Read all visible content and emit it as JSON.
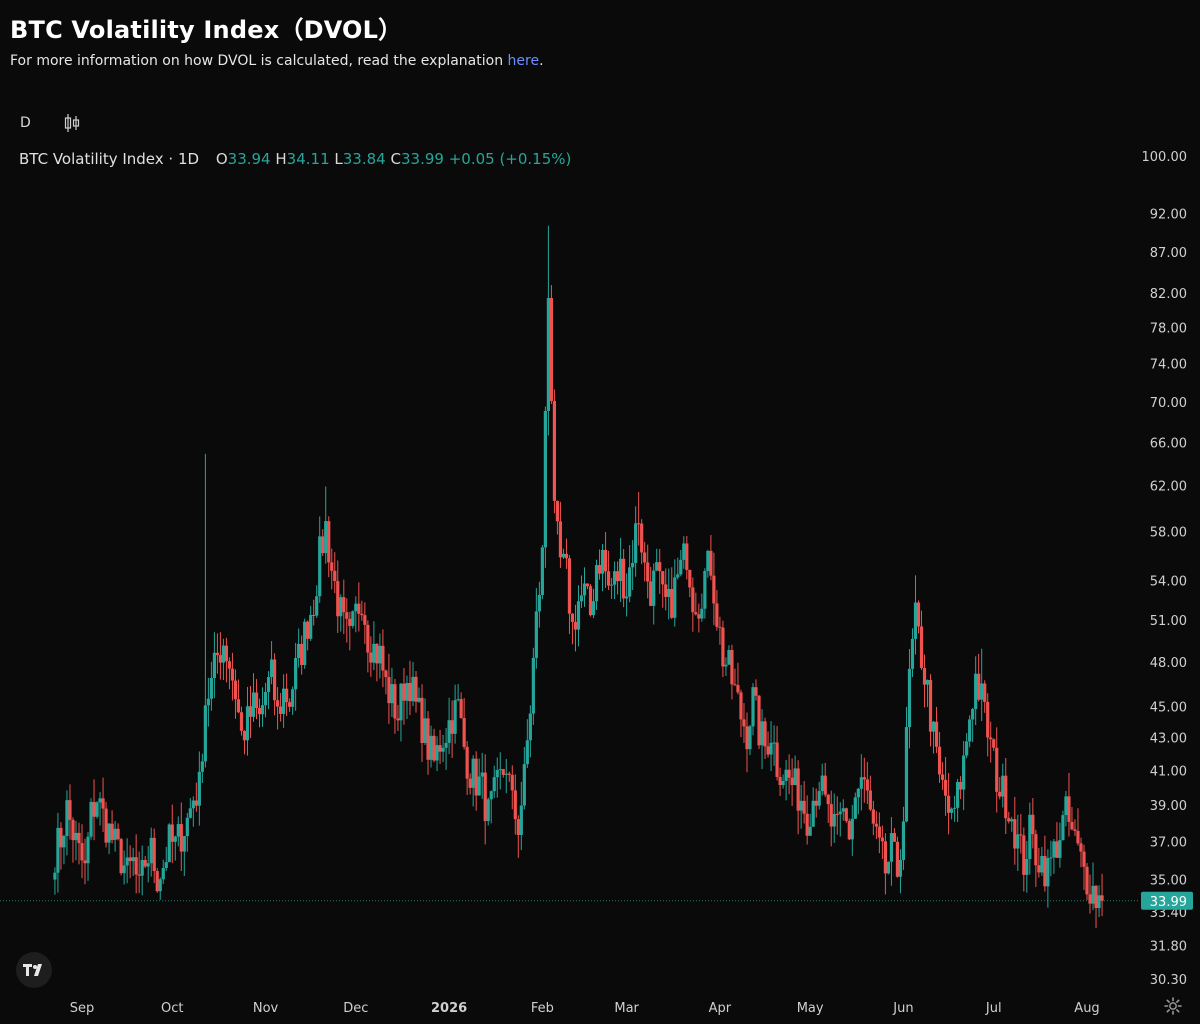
{
  "header": {
    "title": "BTC Volatility Index（DVOL）",
    "subtitle_text": "For more information on how DVOL is calculated, read the explanation ",
    "subtitle_link": "here",
    "subtitle_end": "."
  },
  "toolbar": {
    "interval": "D",
    "chart_type_icon": "candles-icon"
  },
  "legend": {
    "symbol": "BTC Volatility Index · 1D",
    "o_label": "O",
    "o_value": "33.94",
    "h_label": "H",
    "h_value": "34.11",
    "l_label": "L",
    "l_value": "33.84",
    "c_label": "C",
    "c_value": "33.99",
    "change": "+0.05 (+0.15%)"
  },
  "colors": {
    "up": "#26a69a",
    "down": "#ef5350",
    "last_price": "#26a69a",
    "background": "#0a0a0a"
  },
  "chart_data": {
    "type": "candlestick",
    "scale": "log",
    "y_ticks": [
      "100.00",
      "92.00",
      "87.00",
      "82.00",
      "78.00",
      "74.00",
      "70.00",
      "66.00",
      "62.00",
      "58.00",
      "54.00",
      "51.00",
      "48.00",
      "45.00",
      "43.00",
      "41.00",
      "39.00",
      "37.00",
      "35.00",
      "33.40",
      "31.80",
      "30.30"
    ],
    "x_ticks": [
      "Sep",
      "Oct",
      "Nov",
      "Dec",
      "2026",
      "Feb",
      "Mar",
      "Apr",
      "May",
      "Jun",
      "Jul",
      "Aug"
    ],
    "ylim": [
      29.5,
      101
    ],
    "last_price": "33.99",
    "close_series_approx": [
      [
        "2025-08-23",
        36.5
      ],
      [
        "2025-08-25",
        37.2
      ],
      [
        "2025-08-27",
        38.8
      ],
      [
        "2025-08-29",
        37.5
      ],
      [
        "2025-08-31",
        36.4
      ],
      [
        "2025-09-02",
        35.5
      ],
      [
        "2025-09-04",
        38.5
      ],
      [
        "2025-09-06",
        39.5
      ],
      [
        "2025-09-08",
        38.4
      ],
      [
        "2025-09-10",
        37.6
      ],
      [
        "2025-09-12",
        36.8
      ],
      [
        "2025-09-14",
        36.2
      ],
      [
        "2025-09-16",
        35.3
      ],
      [
        "2025-09-18",
        35.9
      ],
      [
        "2025-09-20",
        34.4
      ],
      [
        "2025-09-22",
        36.0
      ],
      [
        "2025-09-24",
        36.5
      ],
      [
        "2025-09-26",
        35.2
      ],
      [
        "2025-09-28",
        35.8
      ],
      [
        "2025-09-30",
        37.0
      ],
      [
        "2025-10-02",
        36.8
      ],
      [
        "2025-10-04",
        37.5
      ],
      [
        "2025-10-06",
        38.2
      ],
      [
        "2025-10-08",
        39.5
      ],
      [
        "2025-10-10",
        40.0
      ],
      [
        "2025-10-12",
        45.5
      ],
      [
        "2025-10-14",
        46.5
      ],
      [
        "2025-10-16",
        48.5
      ],
      [
        "2025-10-18",
        49.5
      ],
      [
        "2025-10-20",
        48.0
      ],
      [
        "2025-10-22",
        46.0
      ],
      [
        "2025-10-24",
        43.2
      ],
      [
        "2025-10-26",
        44.0
      ],
      [
        "2025-10-28",
        45.0
      ],
      [
        "2025-10-30",
        44.2
      ],
      [
        "2025-11-01",
        46.0
      ],
      [
        "2025-11-03",
        47.0
      ],
      [
        "2025-11-05",
        44.5
      ],
      [
        "2025-11-07",
        46.0
      ],
      [
        "2025-11-09",
        45.5
      ],
      [
        "2025-11-11",
        47.5
      ],
      [
        "2025-11-13",
        49.0
      ],
      [
        "2025-11-15",
        51.0
      ],
      [
        "2025-11-17",
        52.5
      ],
      [
        "2025-11-19",
        56.0
      ],
      [
        "2025-11-21",
        58.5
      ],
      [
        "2025-11-23",
        55.0
      ],
      [
        "2025-11-25",
        52.5
      ],
      [
        "2025-11-27",
        50.5
      ],
      [
        "2025-11-29",
        49.5
      ],
      [
        "2025-12-01",
        51.5
      ],
      [
        "2025-12-03",
        53.0
      ],
      [
        "2025-12-05",
        50.0
      ],
      [
        "2025-12-07",
        49.0
      ],
      [
        "2025-12-09",
        48.5
      ],
      [
        "2025-12-11",
        46.5
      ],
      [
        "2025-12-13",
        45.5
      ],
      [
        "2025-12-15",
        44.5
      ],
      [
        "2025-12-17",
        46.5
      ],
      [
        "2025-12-19",
        46.8
      ],
      [
        "2025-12-21",
        45.0
      ],
      [
        "2025-12-23",
        44.0
      ],
      [
        "2025-12-25",
        42.5
      ],
      [
        "2025-12-27",
        41.5
      ],
      [
        "2025-12-29",
        42.8
      ],
      [
        "2025-12-31",
        43.5
      ],
      [
        "2026-01-02",
        44.5
      ],
      [
        "2026-01-04",
        45.0
      ],
      [
        "2026-01-06",
        42.5
      ],
      [
        "2026-01-08",
        41.0
      ],
      [
        "2026-01-10",
        40.5
      ],
      [
        "2026-01-12",
        40.0
      ],
      [
        "2026-01-14",
        38.5
      ],
      [
        "2026-01-16",
        39.5
      ],
      [
        "2026-01-18",
        40.5
      ],
      [
        "2026-01-20",
        41.5
      ],
      [
        "2026-01-22",
        39.0
      ],
      [
        "2026-01-24",
        38.0
      ],
      [
        "2026-01-26",
        40.5
      ],
      [
        "2026-01-28",
        45.0
      ],
      [
        "2026-01-30",
        51.0
      ],
      [
        "2026-02-01",
        56.0
      ],
      [
        "2026-02-03",
        83.0
      ],
      [
        "2026-02-05",
        59.0
      ],
      [
        "2026-02-07",
        55.5
      ],
      [
        "2026-02-09",
        54.5
      ],
      [
        "2026-02-11",
        50.5
      ],
      [
        "2026-02-13",
        52.5
      ],
      [
        "2026-02-15",
        53.0
      ],
      [
        "2026-02-17",
        51.5
      ],
      [
        "2026-02-19",
        55.5
      ],
      [
        "2026-02-21",
        56.0
      ],
      [
        "2026-02-23",
        53.5
      ],
      [
        "2026-02-25",
        54.0
      ],
      [
        "2026-02-27",
        55.0
      ],
      [
        "2026-03-01",
        53.5
      ],
      [
        "2026-03-03",
        56.5
      ],
      [
        "2026-03-05",
        59.5
      ],
      [
        "2026-03-07",
        55.0
      ],
      [
        "2026-03-09",
        53.5
      ],
      [
        "2026-03-11",
        54.5
      ],
      [
        "2026-03-13",
        52.5
      ],
      [
        "2026-03-15",
        52.0
      ],
      [
        "2026-03-17",
        53.5
      ],
      [
        "2026-03-19",
        55.0
      ],
      [
        "2026-03-21",
        56.5
      ],
      [
        "2026-03-23",
        53.0
      ],
      [
        "2026-03-25",
        52.5
      ],
      [
        "2026-03-27",
        54.5
      ],
      [
        "2026-03-29",
        55.5
      ],
      [
        "2026-03-31",
        51.5
      ],
      [
        "2026-04-02",
        48.5
      ],
      [
        "2026-04-04",
        47.5
      ],
      [
        "2026-04-06",
        46.0
      ],
      [
        "2026-04-08",
        44.5
      ],
      [
        "2026-04-10",
        43.5
      ],
      [
        "2026-04-12",
        45.5
      ],
      [
        "2026-04-14",
        43.5
      ],
      [
        "2026-04-16",
        42.5
      ],
      [
        "2026-04-18",
        43.5
      ],
      [
        "2026-04-20",
        41.5
      ],
      [
        "2026-04-22",
        41.0
      ],
      [
        "2026-04-24",
        40.5
      ],
      [
        "2026-04-26",
        40.0
      ],
      [
        "2026-04-28",
        39.5
      ],
      [
        "2026-04-30",
        38.5
      ],
      [
        "2026-05-02",
        39.5
      ],
      [
        "2026-05-04",
        40.5
      ],
      [
        "2026-05-06",
        39.0
      ],
      [
        "2026-05-08",
        38.0
      ],
      [
        "2026-05-10",
        37.5
      ],
      [
        "2026-05-12",
        38.5
      ],
      [
        "2026-05-14",
        37.5
      ],
      [
        "2026-05-16",
        39.5
      ],
      [
        "2026-05-18",
        40.5
      ],
      [
        "2026-05-20",
        39.5
      ],
      [
        "2026-05-22",
        37.5
      ],
      [
        "2026-05-24",
        36.5
      ],
      [
        "2026-05-26",
        35.5
      ],
      [
        "2026-05-28",
        36.5
      ],
      [
        "2026-05-30",
        35.5
      ],
      [
        "2026-06-01",
        38.5
      ],
      [
        "2026-06-03",
        47.0
      ],
      [
        "2026-06-05",
        51.0
      ],
      [
        "2026-06-07",
        48.5
      ],
      [
        "2026-06-09",
        46.0
      ],
      [
        "2026-06-11",
        43.0
      ],
      [
        "2026-06-13",
        40.5
      ],
      [
        "2026-06-15",
        39.5
      ],
      [
        "2026-06-17",
        38.0
      ],
      [
        "2026-06-19",
        39.5
      ],
      [
        "2026-06-21",
        41.5
      ],
      [
        "2026-06-23",
        44.5
      ],
      [
        "2026-06-25",
        47.0
      ],
      [
        "2026-06-27",
        45.5
      ],
      [
        "2026-06-29",
        43.5
      ],
      [
        "2026-07-01",
        41.5
      ],
      [
        "2026-07-03",
        40.0
      ],
      [
        "2026-07-05",
        39.5
      ],
      [
        "2026-07-07",
        38.5
      ],
      [
        "2026-07-09",
        37.0
      ],
      [
        "2026-07-11",
        36.0
      ],
      [
        "2026-07-13",
        37.5
      ],
      [
        "2026-07-15",
        36.5
      ],
      [
        "2026-07-17",
        36.0
      ],
      [
        "2026-07-19",
        35.5
      ],
      [
        "2026-07-21",
        36.5
      ],
      [
        "2026-07-23",
        37.5
      ],
      [
        "2026-07-25",
        38.5
      ],
      [
        "2026-07-27",
        37.5
      ],
      [
        "2026-07-29",
        36.5
      ],
      [
        "2026-07-31",
        35.5
      ],
      [
        "2026-08-02",
        34.8
      ],
      [
        "2026-08-04",
        34.2
      ],
      [
        "2026-08-06",
        33.99
      ]
    ],
    "spikes_high": [
      [
        "2025-10-12",
        65.0
      ],
      [
        "2025-11-21",
        62.0
      ],
      [
        "2026-02-03",
        90.5
      ],
      [
        "2026-03-05",
        61.5
      ],
      [
        "2026-06-05",
        54.5
      ],
      [
        "2026-06-27",
        49.0
      ]
    ]
  }
}
